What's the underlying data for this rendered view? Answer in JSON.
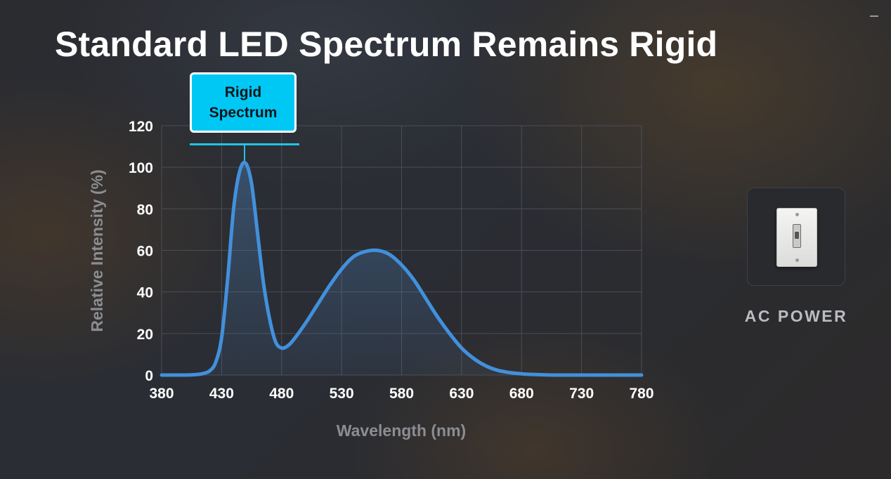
{
  "title": "Standard LED Spectrum Remains Rigid",
  "callout": {
    "line1": "Rigid",
    "line2": "Spectrum"
  },
  "power_source": {
    "label": "AC POWER",
    "icon": "wall-light-switch-icon"
  },
  "chart_data": {
    "type": "area",
    "xlabel": "Wavelength (nm)",
    "ylabel": "Relative Intensity (%)",
    "xlim": [
      380,
      780
    ],
    "ylim": [
      0,
      120
    ],
    "xticks": [
      380,
      430,
      480,
      530,
      580,
      630,
      680,
      730,
      780
    ],
    "yticks": [
      0,
      20,
      40,
      60,
      80,
      100,
      120
    ],
    "grid": true,
    "colors": {
      "line": "#4290dc",
      "fill": "#4a7ab0",
      "grid": "#4a4e55"
    },
    "series": [
      {
        "x": [
          380,
          400,
          410,
          415,
          420,
          425,
          430,
          435,
          440,
          445,
          450,
          455,
          460,
          465,
          470,
          475,
          480,
          485,
          490,
          500,
          510,
          520,
          530,
          540,
          550,
          560,
          570,
          580,
          590,
          600,
          610,
          620,
          630,
          640,
          650,
          660,
          670,
          680,
          690,
          700,
          720,
          740,
          760,
          780
        ],
        "values": [
          0,
          0,
          0.3,
          0.8,
          2,
          6,
          18,
          46,
          80,
          98,
          102,
          92,
          68,
          44,
          27,
          16,
          13,
          14,
          17,
          25,
          34,
          43,
          51,
          57,
          59.5,
          60,
          58,
          53,
          46,
          37,
          28,
          20,
          13,
          8,
          4.5,
          2.3,
          1.2,
          0.6,
          0.3,
          0.1,
          0,
          0,
          0,
          0
        ]
      }
    ]
  }
}
